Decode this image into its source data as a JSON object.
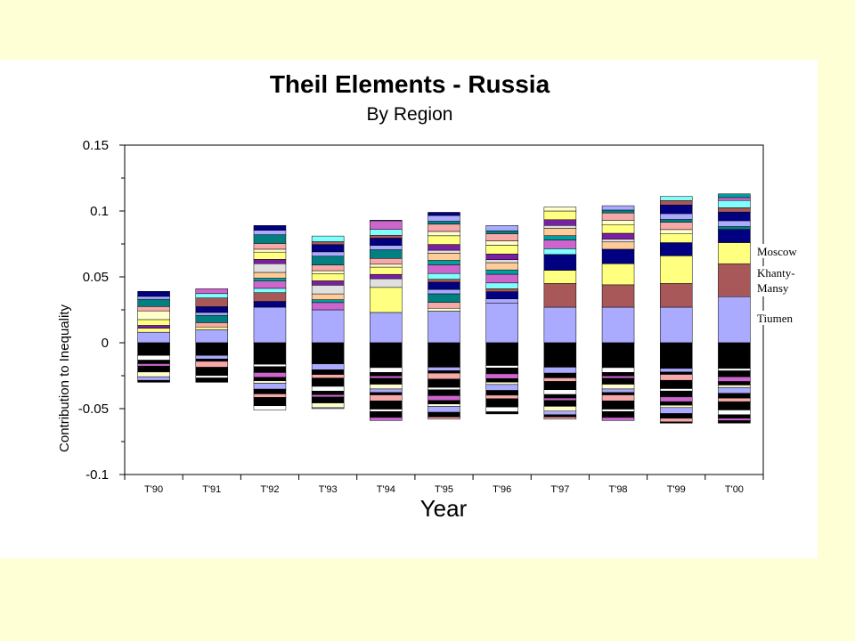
{
  "chart_data": {
    "type": "bar",
    "stacked": true,
    "title": "Theil Elements - Russia",
    "subtitle": "By Region",
    "xlabel": "Year",
    "ylabel": "Contribution to Inequality",
    "ylim": [
      -0.1,
      0.15
    ],
    "yticks": [
      "0.15",
      "0.1",
      "0.05",
      "0",
      "-0.05",
      "-0.1"
    ],
    "ytick_values": [
      0.15,
      0.1,
      0.05,
      0,
      -0.05,
      -0.1
    ],
    "grid": false,
    "categories": [
      "T'90",
      "T'91",
      "T'92",
      "T'93",
      "T'94",
      "T'95",
      "T'96",
      "T'97",
      "T'98",
      "T'99",
      "T'00"
    ],
    "series": [
      {
        "color": "#AAAAFF",
        "values": [
          0.008,
          0.01,
          0.027,
          0.025,
          0.023,
          0.024,
          0.03,
          0.027,
          0.027,
          0.027,
          0.035
        ]
      },
      {
        "color": "#A85858",
        "values": [
          0.0,
          0.0,
          0.0,
          0.0,
          0.0,
          0.0,
          0.0,
          0.018,
          0.017,
          0.018,
          0.025
        ]
      },
      {
        "color": "#FFFF80",
        "values": [
          0.003,
          0.002,
          0.0,
          0.0,
          0.019,
          0.0,
          0.0,
          0.01,
          0.016,
          0.021,
          0.016
        ]
      },
      {
        "color": "#000080",
        "values": [
          0.0,
          0.0,
          0.0,
          0.0,
          0.0,
          0.0,
          0.0,
          0.012,
          0.011,
          0.01,
          0.01
        ]
      }
    ],
    "positive_totals": [
      0.039,
      0.041,
      0.089,
      0.081,
      0.093,
      0.099,
      0.089,
      0.103,
      0.104,
      0.111,
      0.113
    ],
    "negative_totals": [
      -0.03,
      -0.03,
      -0.051,
      -0.05,
      -0.059,
      -0.058,
      -0.054,
      -0.058,
      -0.059,
      -0.061,
      -0.061
    ],
    "annotations": [
      "Moscow",
      "Khanty-Mansy",
      "Tiumen"
    ]
  },
  "annotation_labels": {
    "moscow": "Moscow",
    "khanty_line1": "Khanty-",
    "khanty_line2": "Mansy",
    "tiumen": "Tiumen"
  },
  "colors": {
    "background": "#FFFFD6",
    "panel": "#FFFFFF",
    "palette": [
      "#7B1FA2",
      "#FFFF80",
      "#FFFFCC",
      "#F7A8A8",
      "#008080",
      "#AAAAFF",
      "#000080",
      "#A85858",
      "#80FFFF",
      "#CC66CC",
      "#00A0A0",
      "#FFCC99",
      "#E0E0E0"
    ]
  }
}
